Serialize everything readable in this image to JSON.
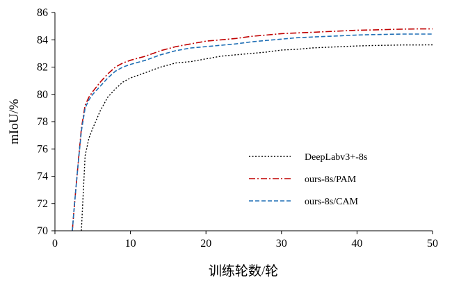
{
  "chart_data": {
    "type": "line",
    "xlabel": "训练轮数/轮",
    "ylabel": "mIoU/%",
    "xlim": [
      0,
      50
    ],
    "ylim": [
      70,
      86
    ],
    "xticks": [
      0,
      10,
      20,
      30,
      40,
      50
    ],
    "yticks": [
      70,
      72,
      74,
      76,
      78,
      80,
      82,
      84,
      86
    ],
    "grid": false,
    "legend_position": "right",
    "series": [
      {
        "name": "DeepLabv3+-8s",
        "color": "#000000",
        "dash": "dotted",
        "x": [
          3.5,
          4,
          4.5,
          5,
          6,
          7,
          8,
          9,
          10,
          12,
          14,
          16,
          18,
          20,
          22,
          24,
          26,
          28,
          30,
          32,
          34,
          36,
          38,
          40,
          42,
          44,
          46,
          48,
          50
        ],
        "values": [
          70,
          75.5,
          76.8,
          77.5,
          78.8,
          79.8,
          80.4,
          80.9,
          81.2,
          81.6,
          82.0,
          82.3,
          82.4,
          82.6,
          82.8,
          82.9,
          83.0,
          83.1,
          83.25,
          83.3,
          83.4,
          83.45,
          83.5,
          83.55,
          83.58,
          83.6,
          83.62,
          83.62,
          83.63
        ]
      },
      {
        "name": "ours-8s/PAM",
        "color": "#c00000",
        "dash": "dashdot",
        "x": [
          2.3,
          2.6,
          3,
          3.5,
          4,
          4.5,
          5,
          6,
          7,
          8,
          9,
          10,
          12,
          14,
          16,
          18,
          20,
          22,
          24,
          26,
          28,
          30,
          32,
          34,
          36,
          38,
          40,
          42,
          44,
          46,
          48,
          50
        ],
        "values": [
          70,
          72,
          74.5,
          77.5,
          79.2,
          79.8,
          80.2,
          80.9,
          81.5,
          82.0,
          82.3,
          82.5,
          82.8,
          83.2,
          83.5,
          83.7,
          83.9,
          84.0,
          84.1,
          84.25,
          84.35,
          84.45,
          84.5,
          84.55,
          84.6,
          84.65,
          84.7,
          84.72,
          84.75,
          84.78,
          84.8,
          84.8
        ]
      },
      {
        "name": "ours-8s/CAM",
        "color": "#1f6fb5",
        "dash": "dashed",
        "x": [
          2.3,
          2.6,
          3,
          3.5,
          4,
          4.5,
          5,
          6,
          7,
          8,
          9,
          10,
          12,
          14,
          16,
          18,
          20,
          22,
          24,
          26,
          28,
          30,
          32,
          34,
          36,
          38,
          40,
          42,
          44,
          46,
          48,
          50
        ],
        "values": [
          70,
          72,
          74.5,
          77.3,
          79.0,
          79.6,
          80.0,
          80.6,
          81.2,
          81.7,
          82.0,
          82.2,
          82.5,
          82.9,
          83.2,
          83.4,
          83.5,
          83.6,
          83.7,
          83.85,
          83.95,
          84.05,
          84.15,
          84.2,
          84.25,
          84.3,
          84.35,
          84.38,
          84.4,
          84.42,
          84.42,
          84.42
        ]
      }
    ]
  }
}
